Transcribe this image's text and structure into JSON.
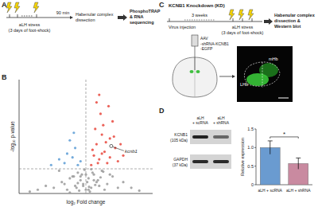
{
  "panel_a": {
    "label": "A",
    "stress": [
      "aLH stress",
      "(3 days of foot-shock)"
    ],
    "interval": "90 min",
    "dissection": [
      "Habenular complex",
      "dissection"
    ],
    "analysis": [
      "PhosphoTRAP",
      "& RNA",
      "sequencing"
    ]
  },
  "panel_b": {
    "label": "B"
  },
  "panel_c": {
    "label": "C",
    "title": "KCNB1 Knockdown (KD)",
    "interval": "3 weeks",
    "injection": "Virus injection",
    "stress": [
      "aLH stress",
      "(3 days of foot-shock)"
    ],
    "analysis": [
      "Habenular complex",
      "dissection &",
      "Western blot"
    ],
    "virus": [
      "AAV",
      "-shRNA-KCNB1",
      "-EGFP"
    ],
    "regions": [
      "mHb",
      "LHb"
    ]
  },
  "panel_d": {
    "label": "D",
    "blot_lanes": [
      [
        "aLH",
        "+ scRNA"
      ],
      [
        "aLH",
        "+ shRNA"
      ]
    ],
    "blot_bands": [
      [
        "KCNB1",
        "(105 kDa)"
      ],
      [
        "GAPDH",
        "(37 kDa)"
      ]
    ]
  },
  "chart_data": [
    {
      "type": "scatter",
      "x_label": "log₂ Fold change",
      "y_label": "-log₁₀ p-value",
      "xlim": [
        -2.5,
        2.5
      ],
      "ylim": [
        0,
        6
      ],
      "tick_labels": false,
      "vline": 0,
      "hline": 1.3,
      "series": [
        {
          "color": "#9a9a9a",
          "x": [
            -1.2,
            -0.9,
            -0.7,
            -0.5,
            -0.4,
            -0.3,
            -0.2,
            -0.1,
            0,
            0.1,
            0.2,
            0.3,
            0.4,
            0.5,
            0.6,
            0.8,
            1.0,
            1.2,
            -1.5,
            -1.0,
            -0.6,
            -0.35,
            -0.15,
            0.05,
            0.15,
            0.25,
            0.45,
            0.7,
            0.9,
            1.4,
            -0.8,
            -0.45,
            -0.25,
            0.35,
            0.55,
            -1.8,
            1.7,
            -0.05,
            0.12,
            -0.6,
            0.65,
            -2.1,
            2.0,
            0.3,
            -0.3,
            0.2,
            -0.2,
            0.1,
            -0.1,
            0
          ],
          "values": [
            0.3,
            0.6,
            0.2,
            0.9,
            0.4,
            1.1,
            0.7,
            0.5,
            0.2,
            0.8,
            0.3,
            1.0,
            0.6,
            0.4,
            1.2,
            0.5,
            0.9,
            0.3,
            0.4,
            1.2,
            0.8,
            0.3,
            1.0,
            0.6,
            0.1,
            1.1,
            0.7,
            0.2,
            1.0,
            0.6,
            0.5,
            0.9,
            0.15,
            0.45,
            0.85,
            0.2,
            0.3,
            1.25,
            0.35,
            0.05,
            1.15,
            0.1,
            0.15,
            0.7,
            0.55,
            1.28,
            0.9,
            0.2,
            0.4,
            1.0
          ]
        },
        {
          "color": "#5b9bd5",
          "x": [
            -0.3,
            -0.5,
            -0.8,
            -0.4,
            -1.0,
            -0.6,
            -0.2,
            -1.3,
            -0.7,
            -0.45
          ],
          "values": [
            1.5,
            1.9,
            1.6,
            2.4,
            1.8,
            2.8,
            1.7,
            1.5,
            2.1,
            3.2
          ]
        },
        {
          "color": "#e8463c",
          "x": [
            0.2,
            0.3,
            0.4,
            0.5,
            0.6,
            0.7,
            0.8,
            0.9,
            1.0,
            1.1,
            1.2,
            1.4,
            0.35,
            0.55,
            0.75,
            0.45,
            0.65,
            0.25,
            0.85,
            1.05,
            0.5,
            0.6,
            0.9,
            1.3,
            0.4
          ],
          "values": [
            1.5,
            2.0,
            2.6,
            1.8,
            3.1,
            2.2,
            1.6,
            2.9,
            3.8,
            2.4,
            1.7,
            2.0,
            3.4,
            4.2,
            2.7,
            1.6,
            3.6,
            2.3,
            4.6,
            3.0,
            5.2,
            2.1,
            1.9,
            2.6,
            4.8
          ]
        }
      ],
      "annotations": [
        {
          "text": "kcnb1",
          "x": 0.95,
          "y": 2.5
        }
      ]
    },
    {
      "type": "bar",
      "categories": [
        "aLH + scRNA",
        "aLH + shRNA"
      ],
      "values": [
        1.0,
        0.57
      ],
      "errors": [
        0.18,
        0.15
      ],
      "colors": [
        "#6a9bd0",
        "#c98aa0"
      ],
      "ylim": [
        0,
        1.5
      ],
      "yticks": [
        0,
        0.5,
        {
          "value": 1,
          "label": "1.0"
        },
        1.5
      ],
      "y_label": "Relative expression",
      "significance": "*"
    }
  ]
}
